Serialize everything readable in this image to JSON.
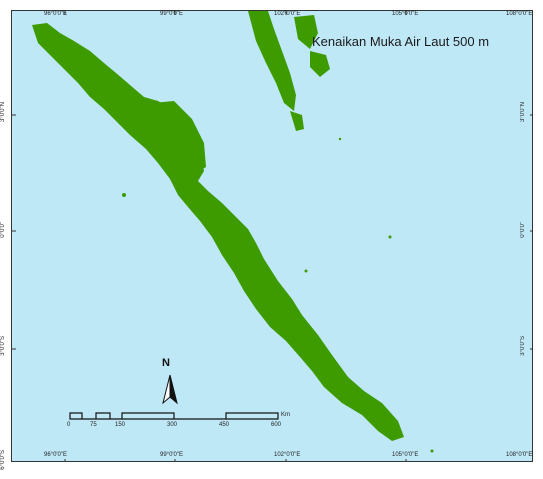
{
  "map": {
    "title": "Kenaikan Muka Air Laut 500 m",
    "colors": {
      "sea": "#bfe8f7",
      "land": "#3d9b00",
      "frame": "#333333"
    },
    "longitude_labels": [
      "96°0'0\"E",
      "99°0'0\"E",
      "102°0'0\"E",
      "105°0'0\"E",
      "108°0'0\"E"
    ],
    "latitude_labels": [
      "3°0'0\"N",
      "0°0'0\"",
      "3°0'0\"S",
      "6°0'0\"S"
    ],
    "north_arrow": {
      "label": "N"
    },
    "scale_bar": {
      "unit": "Km",
      "labels": [
        "0",
        "75",
        "150",
        "300",
        "450",
        "600"
      ]
    }
  }
}
